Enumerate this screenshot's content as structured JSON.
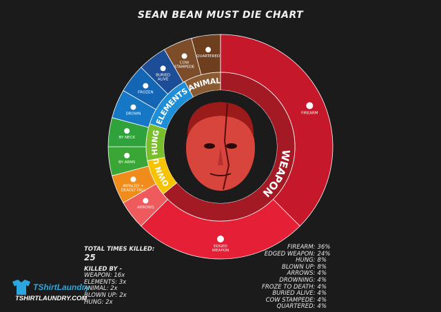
{
  "title": "SEAN BEAN MUST DIE CHART",
  "chart_data": {
    "type": "pie",
    "title": "SEAN BEAN MUST DIE CHART",
    "center_image": "sean-bean-face",
    "inner_ring": [
      {
        "name": "WEAPON",
        "value": 16,
        "color": "#a31924"
      },
      {
        "name": "BLOWN UP",
        "value": 2,
        "color": "#f7c200"
      },
      {
        "name": "HUNG",
        "value": 2,
        "color": "#79bf2b"
      },
      {
        "name": "ELEMENTS",
        "value": 3,
        "color": "#1e8fd6"
      },
      {
        "name": "ANIMAL",
        "value": 2,
        "color": "#8a5a32"
      }
    ],
    "outer_ring": [
      {
        "name": "FIREARM",
        "value": 36,
        "color": "#c5182b",
        "icon": "pistol-icon"
      },
      {
        "name": "EDGED WEAPON",
        "value": 24,
        "color": "#e41f36",
        "icon": "knife-icon"
      },
      {
        "name": "ARROWS",
        "value": 4,
        "color": "#ef5a5d",
        "icon": "arrows-icon"
      },
      {
        "name": "IMPALED + DEADLY FALL",
        "value": 4,
        "color": "#f08c1c",
        "icon": "impale-icon"
      },
      {
        "name": "BY ARMS",
        "value": 4,
        "color": "#3aa636",
        "icon": "noose-icon"
      },
      {
        "name": "BY NECK",
        "value": 4,
        "color": "#2fa23b",
        "icon": "noose-icon"
      },
      {
        "name": "DROWN",
        "value": 4,
        "color": "#1678c4",
        "icon": "waves-icon"
      },
      {
        "name": "FROZEN",
        "value": 4,
        "color": "#1565b5",
        "icon": "snowflake-icon"
      },
      {
        "name": "BURIED ALIVE",
        "value": 4,
        "color": "#1c4d96",
        "icon": "rocks-icon"
      },
      {
        "name": "COW STAMPEDE",
        "value": 4,
        "color": "#7d4c28",
        "icon": "cow-icon"
      },
      {
        "name": "QUARTERED",
        "value": 4,
        "color": "#6d3f1f",
        "icon": "horse-icon"
      }
    ]
  },
  "total": {
    "label": "TOTAL TIMES KILLED:",
    "value": "25"
  },
  "killed_by": {
    "title": "KILLED BY -",
    "lines": [
      "WEAPON: 16x",
      "ELEMENTS: 3x",
      "ANIMAL: 2x",
      "BLOWN UP: 2x",
      "HUNG: 2x"
    ]
  },
  "percent_list": [
    {
      "label": "FIREARM:",
      "value": "36%"
    },
    {
      "label": "EDGED WEAPON:",
      "value": "24%"
    },
    {
      "label": "HUNG:",
      "value": "8%"
    },
    {
      "label": "BLOWN UP:",
      "value": "8%"
    },
    {
      "label": "ARROWS:",
      "value": "4%"
    },
    {
      "label": "DROWNING:",
      "value": "4%"
    },
    {
      "label": "FROZE TO DEATH:",
      "value": "4%"
    },
    {
      "label": "BURIED ALIVE:",
      "value": "4%"
    },
    {
      "label": "COW STAMPEDE:",
      "value": "4%"
    },
    {
      "label": "QUARTERED:",
      "value": "4%"
    }
  ],
  "brand": {
    "name": "TShirtLaundry",
    "url": "TSHIRTLAUNDRY.COM",
    "accent": "#2aa7e0"
  }
}
